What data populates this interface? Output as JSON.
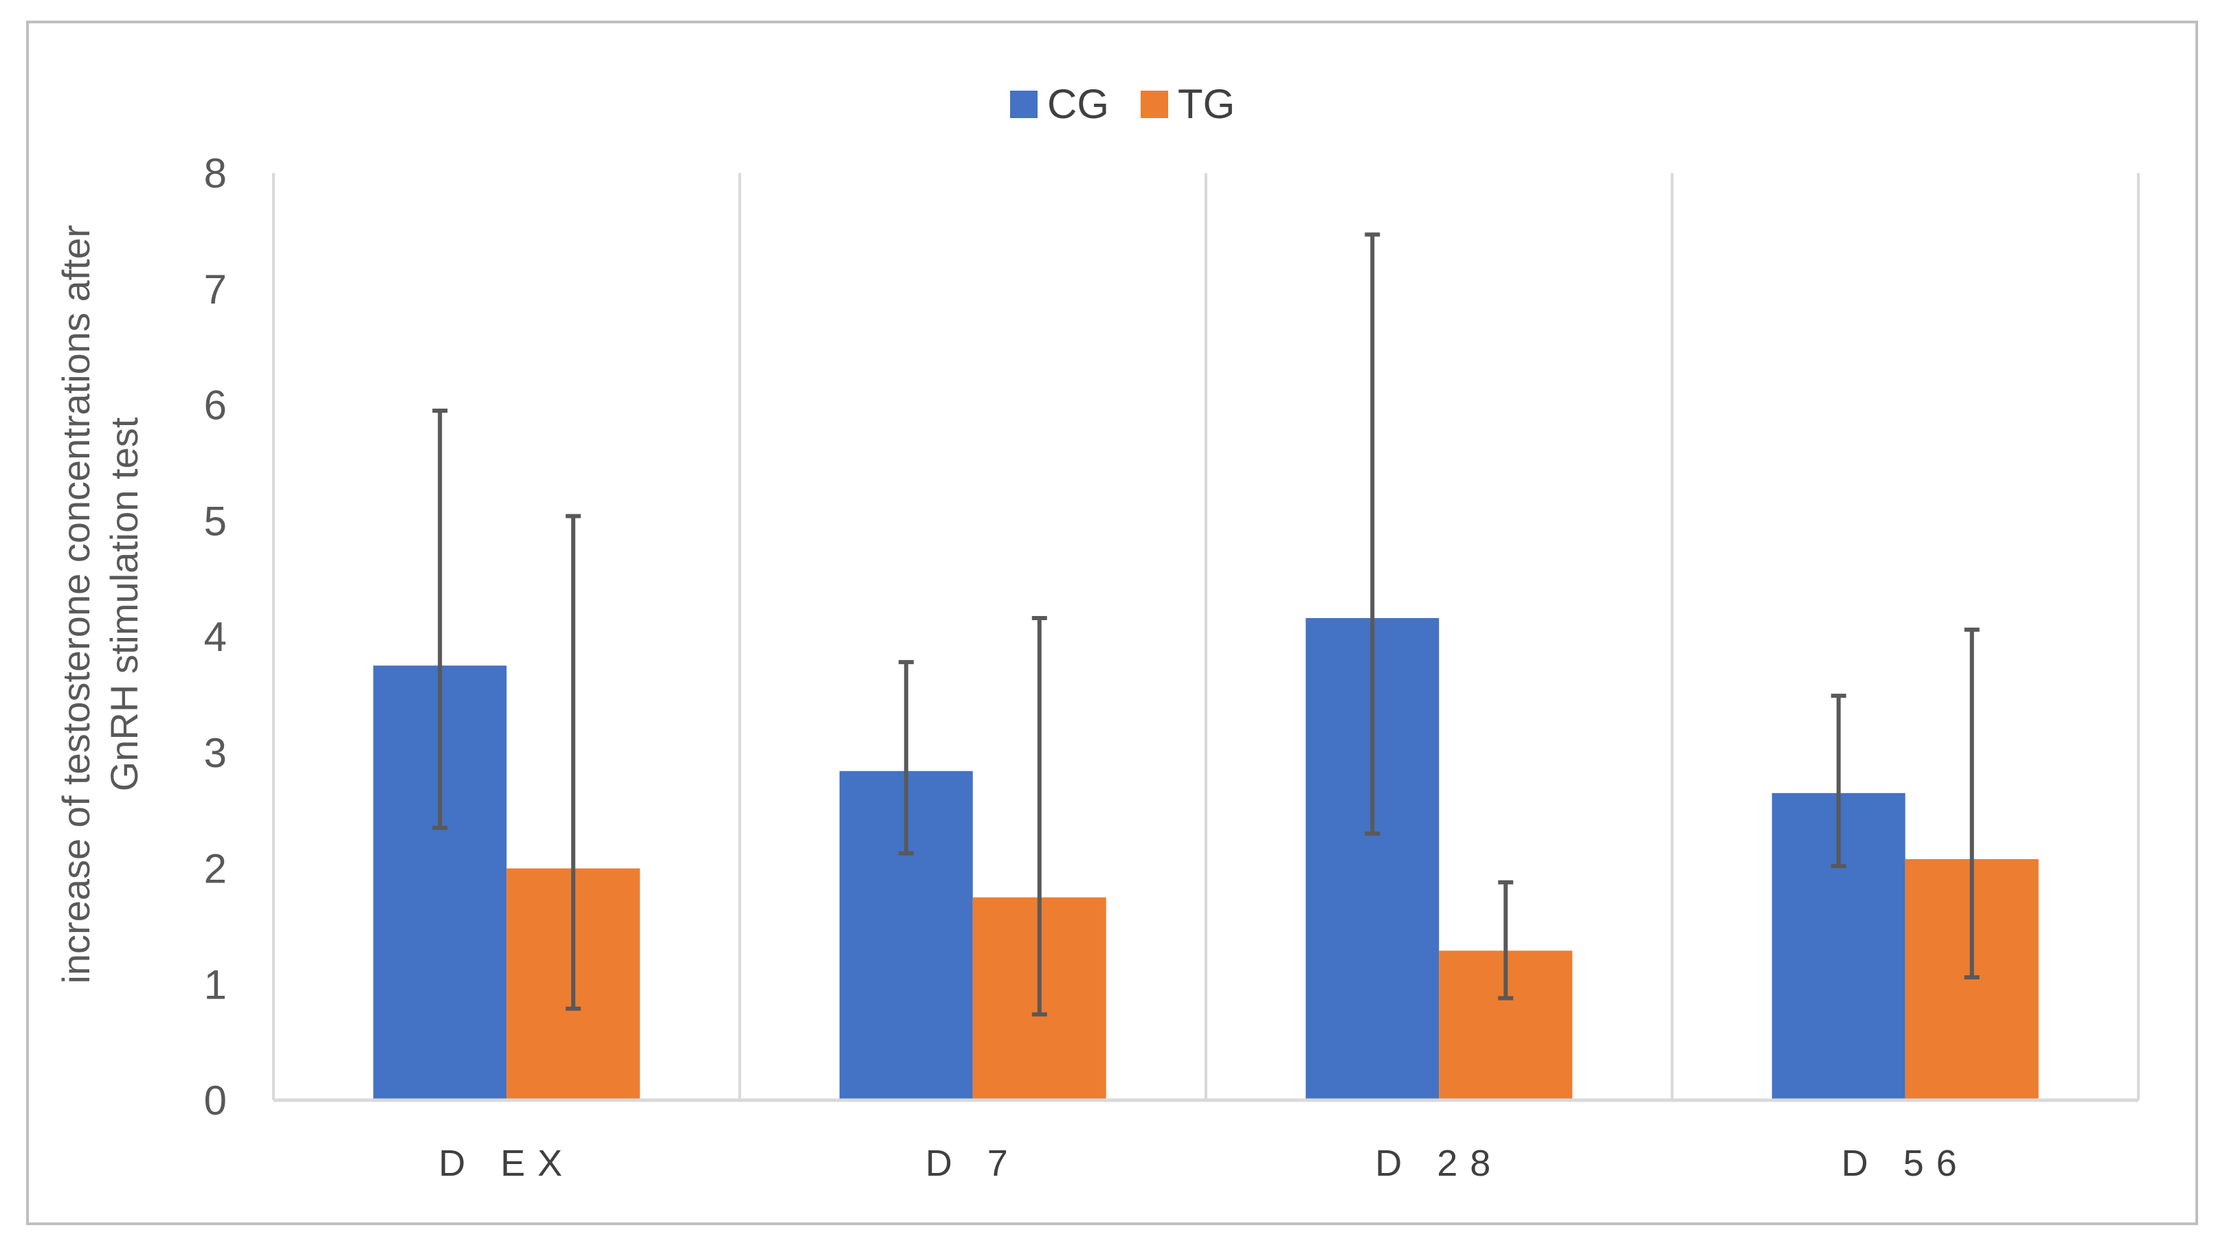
{
  "chart_data": {
    "type": "bar",
    "title": "",
    "xlabel": "",
    "ylabel_lines": [
      "increase of testosterone concentrations after",
      "GnRH stimulation test"
    ],
    "categories": [
      "D  EX",
      "D  7",
      "D  28",
      "D  56"
    ],
    "ylim": [
      0,
      8
    ],
    "yticks": [
      0,
      1,
      2,
      3,
      4,
      5,
      6,
      7,
      8
    ],
    "grid": "vertical category separators",
    "legend_position": "top-center",
    "series": [
      {
        "name": "CG",
        "color": "#4472c4",
        "values": [
          3.75,
          2.84,
          4.16,
          2.65
        ],
        "error_low": [
          2.35,
          2.13,
          2.3,
          2.02
        ],
        "error_high": [
          5.95,
          3.78,
          7.47,
          3.49
        ]
      },
      {
        "name": "TG",
        "color": "#ed7d31",
        "values": [
          2.0,
          1.75,
          1.29,
          2.08
        ],
        "error_low": [
          0.79,
          0.74,
          0.88,
          1.06
        ],
        "error_high": [
          5.04,
          4.16,
          1.88,
          4.06
        ]
      }
    ]
  }
}
